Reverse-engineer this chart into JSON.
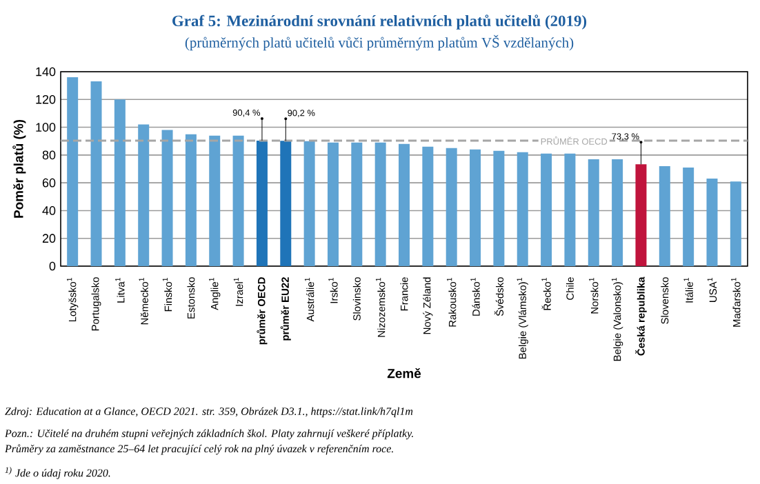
{
  "chart_data": {
    "type": "bar",
    "title": "Graf 5: Mezinárodní srovnání relativních platů učitelů (2019)",
    "subtitle": "(průměrných platů učitelů vůči průměrným platům VŠ vzdělaných)",
    "xlabel": "Země",
    "ylabel": "Poměr platů (%)",
    "categories": [
      "Lotyšsko$^{1}$",
      "Portugalsko",
      "Litva$^{1}$",
      "Německo$^{1}$",
      "Finsko$^{1}$",
      "Estonsko",
      "Anglie$^{1}$",
      "Izrael$^{1}$",
      "průměr OECD",
      "průměr EU22",
      "Austrálie$^{1}$",
      "Irsko$^{1}$",
      "Slovinsko",
      "Nizozemsko$^{1}$",
      "Francie",
      "Nový Zéland",
      "Rakousko$^{1}$",
      "Dánsko$^{1}$",
      "Švédsko",
      "Belgie (Vlámsko)$^{1}$",
      "Řecko$^{1}$",
      "Chile",
      "Norsko$^{1}$",
      "Belgie (Valonsko)$^{1}$",
      "Česká republika",
      "Slovensko",
      "Itálie$^{1}$",
      "USA$^{1}$",
      "Maďarsko$^{1}$"
    ],
    "values": [
      136,
      133,
      120,
      102,
      98,
      95,
      94,
      94,
      90.4,
      90.2,
      90,
      89,
      89,
      89,
      88,
      86,
      85,
      84,
      83,
      82,
      81,
      81,
      77,
      77,
      73.3,
      72,
      71,
      63,
      61
    ],
    "colors": [
      "#5fa3d3",
      "#5fa3d3",
      "#5fa3d3",
      "#5fa3d3",
      "#5fa3d3",
      "#5fa3d3",
      "#5fa3d3",
      "#5fa3d3",
      "#1f74b8",
      "#1f74b8",
      "#5fa3d3",
      "#5fa3d3",
      "#5fa3d3",
      "#5fa3d3",
      "#5fa3d3",
      "#5fa3d3",
      "#5fa3d3",
      "#5fa3d3",
      "#5fa3d3",
      "#5fa3d3",
      "#5fa3d3",
      "#5fa3d3",
      "#5fa3d3",
      "#5fa3d3",
      "#c0143c",
      "#5fa3d3",
      "#5fa3d3",
      "#5fa3d3",
      "#5fa3d3"
    ],
    "value_labels": [
      null,
      null,
      null,
      null,
      null,
      null,
      null,
      null,
      "90,4 %",
      "90,2 %",
      null,
      null,
      null,
      null,
      null,
      null,
      null,
      null,
      null,
      null,
      null,
      null,
      null,
      null,
      "73,3 %",
      null,
      null,
      null,
      null
    ],
    "ylim": [
      0,
      140
    ],
    "yticks": [
      0,
      20,
      40,
      60,
      80,
      100,
      120,
      140
    ],
    "grid": "y",
    "ref_lines": [
      {
        "axis": "y",
        "value": 90.4,
        "label": "PRŮMĚR OECD",
        "color": "#a6a6a6",
        "line_style": "dashed"
      }
    ],
    "annotations": [
      "Zdroj: Education at a Glance, OECD 2021. str. 359, Obrázek D3.1., https://stat.link/h7ql1m",
      "Pozn.: Učitelé na druhém stupni veřejných základních škol. Platy zahrnují veškeré příplatky.",
      "Průměry za zaměstnance 25–64 let pracující celý rok na plný úvazek v referenčním roce.",
      "$^{1)}$ Jde o údaj roku 2020."
    ]
  }
}
